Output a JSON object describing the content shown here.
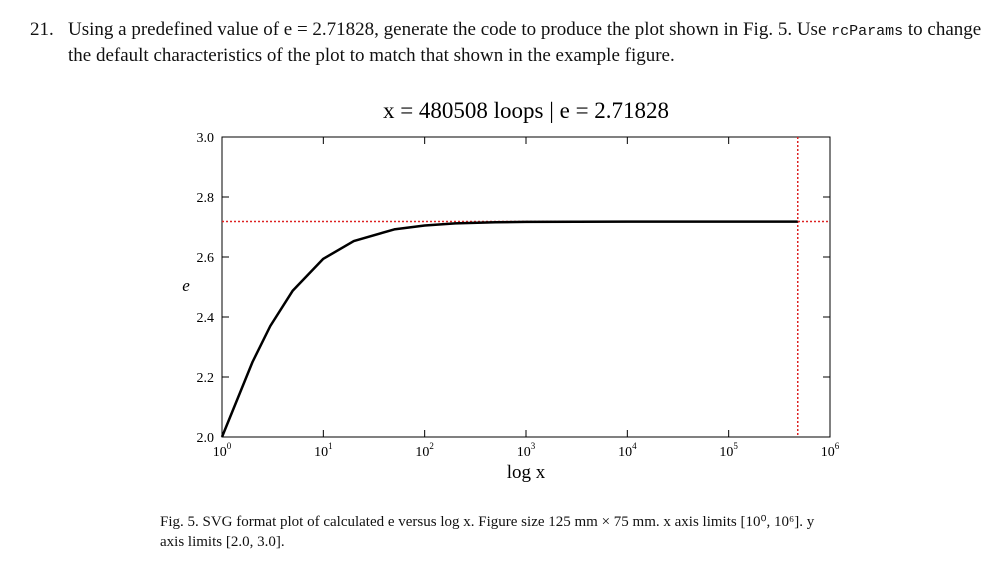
{
  "question": {
    "number": "21.",
    "text_before": "Using a predefined value of e = 2.71828, generate the code to produce the plot shown in Fig. 5. Use",
    "code": "rcParams",
    "text_after": "to change the default characteristics of the plot to match that shown in the example figure."
  },
  "chart_data": {
    "type": "line",
    "title": "x = 480508 loops | e = 2.71828",
    "x_label": "log x",
    "y_label": "e",
    "x": [
      1,
      2,
      3,
      5,
      10,
      20,
      50,
      100,
      200,
      500,
      1000,
      10000,
      100000,
      480508
    ],
    "series": [
      {
        "color": "#000000",
        "values": [
          2.0,
          2.25,
          2.37,
          2.488,
          2.594,
          2.653,
          2.692,
          2.705,
          2.712,
          2.716,
          2.717,
          2.718,
          2.718,
          2.718
        ]
      }
    ],
    "hline": 2.71828,
    "vline": 480508,
    "ref_color": "#dd2222",
    "xlim": [
      1,
      1000000
    ],
    "log_x": true,
    "xticks": [
      {
        "value": 1,
        "label": "10",
        "exponent": "0"
      },
      {
        "value": 10,
        "label": "10",
        "exponent": "1"
      },
      {
        "value": 100,
        "label": "10",
        "exponent": "2"
      },
      {
        "value": 1000,
        "label": "10",
        "exponent": "3"
      },
      {
        "value": 10000,
        "label": "10",
        "exponent": "4"
      },
      {
        "value": 100000,
        "label": "10",
        "exponent": "5"
      },
      {
        "value": 1000000,
        "label": "10",
        "exponent": "6"
      }
    ],
    "ylim": [
      2,
      3
    ],
    "yticks": [
      {
        "value": 2,
        "label": "2.0"
      },
      2.2,
      2.4,
      2.6,
      2.8,
      {
        "value": 3,
        "label": "3.0"
      }
    ]
  },
  "caption": {
    "line1": "Fig. 5. SVG format plot of calculated e versus log x. Figure size 125 mm × 75 mm. x axis limits [10⁰, 10⁶]. y",
    "line2": "axis limits [2.0, 3.0]."
  }
}
